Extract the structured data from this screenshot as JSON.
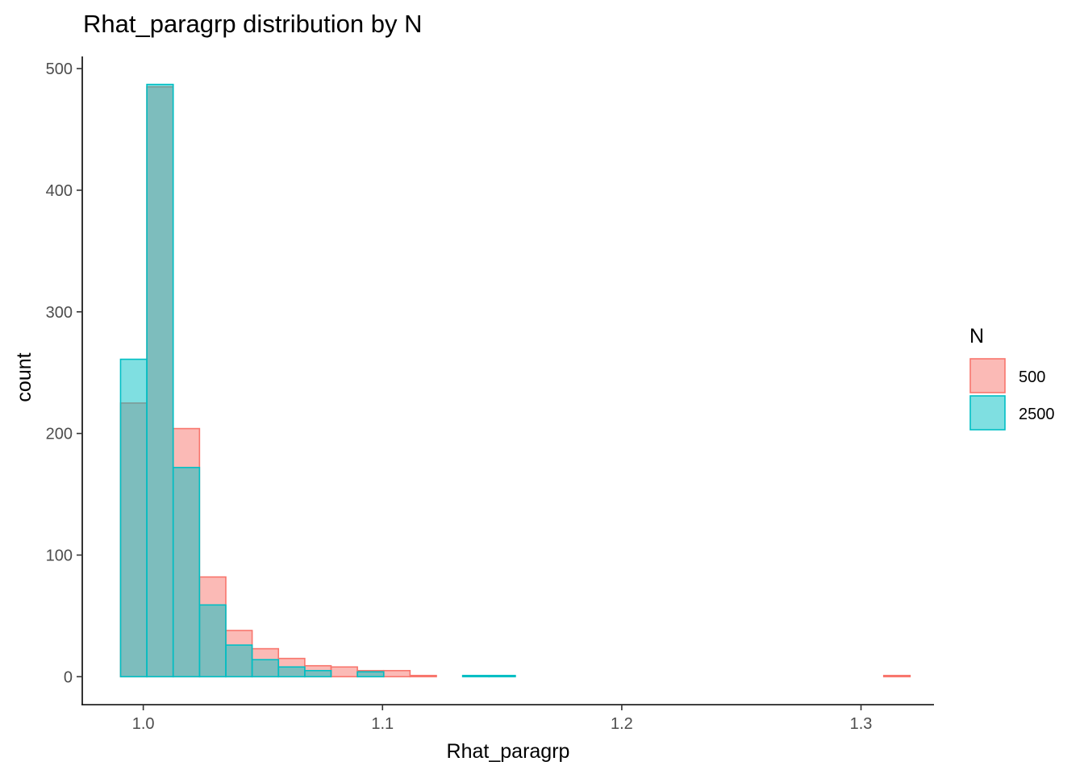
{
  "chart_data": {
    "type": "bar",
    "subtype": "histogram-overlay",
    "title": "Rhat_paragrp distribution by N",
    "xlabel": "Rhat_paragrp",
    "ylabel": "count",
    "xlim": [
      0.9745,
      1.3305
    ],
    "ylim": [
      -23,
      510
    ],
    "x_ticks": [
      1.0,
      1.1,
      1.2,
      1.3
    ],
    "x_tick_labels": [
      "1.0",
      "1.1",
      "1.2",
      "1.3"
    ],
    "y_ticks": [
      0,
      100,
      200,
      300,
      400,
      500
    ],
    "y_tick_labels": [
      "0",
      "100",
      "200",
      "300",
      "400",
      "500"
    ],
    "bin_edges": [
      0.9905,
      1.0015,
      1.0125,
      1.0235,
      1.0345,
      1.0455,
      1.0565,
      1.0675,
      1.0785,
      1.0895,
      1.1005,
      1.1115,
      1.1225,
      1.1335,
      1.1445,
      1.1555,
      1.1665,
      1.1775,
      1.1885,
      1.1995,
      1.2105,
      1.2215,
      1.2325,
      1.2435,
      1.2545,
      1.2655,
      1.2765,
      1.2875,
      1.2985,
      1.3095,
      1.3205
    ],
    "series": [
      {
        "name": "500",
        "fill": "#F8766D",
        "stroke": "#F8766D",
        "values": [
          225,
          485,
          204,
          82,
          38,
          23,
          15,
          9,
          8,
          5,
          5,
          1,
          0,
          0,
          0,
          0,
          0,
          0,
          0,
          0,
          0,
          0,
          0,
          0,
          0,
          0,
          0,
          0,
          0,
          1
        ]
      },
      {
        "name": "2500",
        "fill": "#00BFC4",
        "stroke": "#00BFC4",
        "values": [
          261,
          487,
          172,
          59,
          26,
          14,
          8,
          5,
          0,
          4,
          0,
          0,
          0,
          1,
          1,
          0,
          0,
          0,
          0,
          0,
          0,
          0,
          0,
          0,
          0,
          0,
          0,
          0,
          0,
          0
        ]
      }
    ],
    "fill_opacity": 0.5,
    "legend": {
      "title": "N",
      "position": "right"
    },
    "grid": false
  }
}
